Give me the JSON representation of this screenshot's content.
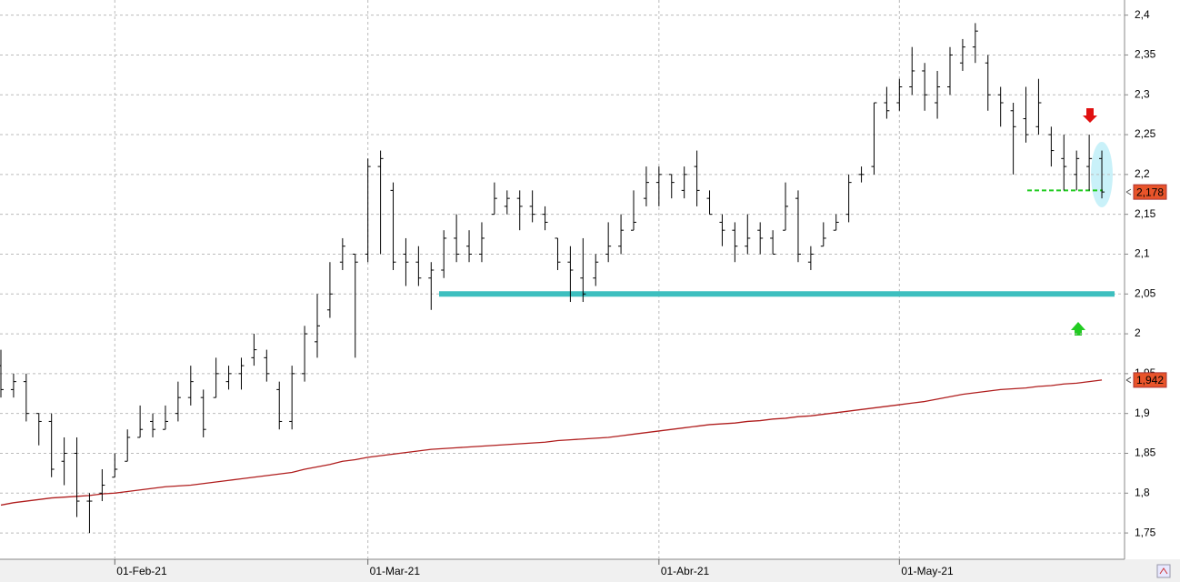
{
  "chart_data": {
    "type": "ohlc",
    "categories": [
      null,
      null,
      null,
      null,
      null,
      null,
      null,
      null,
      null,
      "01-Feb-21",
      null,
      null,
      null,
      null,
      null,
      null,
      null,
      null,
      null,
      null,
      null,
      null,
      null,
      null,
      null,
      null,
      null,
      null,
      null,
      "01-Mar-21",
      null,
      null,
      null,
      null,
      null,
      null,
      null,
      null,
      null,
      null,
      null,
      null,
      null,
      null,
      null,
      null,
      null,
      null,
      null,
      null,
      null,
      null,
      "01-Abr-21",
      null,
      null,
      null,
      null,
      null,
      null,
      null,
      null,
      null,
      null,
      null,
      null,
      null,
      null,
      null,
      null,
      null,
      null,
      "01-May-21",
      null,
      null,
      null,
      null,
      null,
      null,
      null,
      null,
      null,
      null,
      null,
      null,
      null,
      null,
      null,
      null
    ],
    "ohlc": {
      "color": "#000000",
      "open": [
        1.96,
        1.93,
        1.94,
        1.9,
        1.89,
        1.84,
        1.85,
        1.79,
        1.8,
        1.82,
        1.84,
        1.87,
        1.89,
        1.88,
        1.9,
        1.92,
        1.92,
        1.92,
        1.94,
        1.95,
        1.97,
        1.97,
        1.93,
        1.89,
        1.95,
        1.99,
        2.03,
        2.09,
        2.1,
        2.1,
        2.21,
        2.18,
        2.1,
        2.09,
        2.07,
        2.08,
        2.12,
        2.11,
        2.1,
        2.15,
        2.16,
        2.17,
        2.16,
        2.15,
        2.12,
        2.09,
        2.07,
        2.07,
        2.1,
        2.11,
        2.13,
        2.17,
        2.19,
        2.2,
        2.18,
        2.21,
        2.17,
        2.14,
        2.13,
        2.11,
        2.13,
        2.12,
        2.13,
        2.17,
        2.09,
        2.11,
        2.13,
        2.15,
        2.2,
        2.21,
        2.29,
        2.29,
        2.31,
        2.33,
        2.29,
        2.31,
        2.34,
        2.36,
        2.34,
        2.3,
        2.28,
        2.27,
        2.26,
        2.25,
        2.22,
        2.2,
        2.21,
        2.22
      ],
      "high": [
        1.98,
        1.95,
        1.95,
        1.9,
        1.9,
        1.87,
        1.87,
        1.8,
        1.83,
        1.85,
        1.88,
        1.91,
        1.9,
        1.91,
        1.94,
        1.96,
        1.93,
        1.97,
        1.96,
        1.97,
        2.0,
        1.98,
        1.94,
        1.96,
        2.01,
        2.05,
        2.09,
        2.12,
        2.1,
        2.22,
        2.23,
        2.19,
        2.12,
        2.11,
        2.09,
        2.13,
        2.15,
        2.13,
        2.14,
        2.19,
        2.18,
        2.18,
        2.18,
        2.16,
        2.12,
        2.11,
        2.12,
        2.1,
        2.14,
        2.15,
        2.18,
        2.21,
        2.21,
        2.2,
        2.21,
        2.23,
        2.18,
        2.15,
        2.14,
        2.15,
        2.14,
        2.13,
        2.19,
        2.18,
        2.11,
        2.14,
        2.15,
        2.2,
        2.21,
        2.29,
        2.31,
        2.32,
        2.36,
        2.34,
        2.33,
        2.36,
        2.37,
        2.39,
        2.35,
        2.31,
        2.29,
        2.31,
        2.32,
        2.26,
        2.25,
        2.23,
        2.25,
        2.23
      ],
      "low": [
        1.92,
        1.92,
        1.89,
        1.86,
        1.82,
        1.81,
        1.77,
        1.75,
        1.79,
        1.82,
        1.84,
        1.87,
        1.87,
        1.88,
        1.89,
        1.91,
        1.87,
        1.92,
        1.93,
        1.93,
        1.96,
        1.94,
        1.88,
        1.88,
        1.94,
        1.97,
        2.02,
        2.08,
        1.97,
        2.09,
        2.1,
        2.08,
        2.06,
        2.06,
        2.03,
        2.07,
        2.09,
        2.09,
        2.09,
        2.15,
        2.15,
        2.13,
        2.14,
        2.13,
        2.08,
        2.04,
        2.04,
        2.06,
        2.09,
        2.1,
        2.13,
        2.16,
        2.16,
        2.17,
        2.17,
        2.16,
        2.15,
        2.11,
        2.09,
        2.1,
        2.1,
        2.1,
        2.13,
        2.09,
        2.08,
        2.11,
        2.13,
        2.14,
        2.19,
        2.2,
        2.27,
        2.28,
        2.3,
        2.28,
        2.27,
        2.3,
        2.33,
        2.34,
        2.28,
        2.26,
        2.2,
        2.24,
        2.25,
        2.21,
        2.18,
        2.18,
        2.18,
        2.17
      ],
      "close": [
        1.93,
        1.94,
        1.9,
        1.89,
        1.83,
        1.85,
        1.79,
        1.79,
        1.81,
        1.83,
        1.87,
        1.88,
        1.88,
        1.89,
        1.92,
        1.94,
        1.88,
        1.95,
        1.95,
        1.96,
        1.98,
        1.95,
        1.89,
        1.95,
        2.0,
        2.01,
        2.05,
        2.11,
        2.09,
        2.21,
        2.22,
        2.09,
        2.09,
        2.07,
        2.08,
        2.12,
        2.1,
        2.1,
        2.12,
        2.17,
        2.17,
        2.16,
        2.15,
        2.14,
        2.09,
        2.08,
        2.05,
        2.09,
        2.11,
        2.13,
        2.14,
        2.19,
        2.2,
        2.19,
        2.2,
        2.18,
        2.15,
        2.13,
        2.11,
        2.12,
        2.12,
        2.1,
        2.16,
        2.1,
        2.1,
        2.12,
        2.14,
        2.19,
        2.2,
        2.29,
        2.28,
        2.31,
        2.33,
        2.3,
        2.31,
        2.35,
        2.36,
        2.38,
        2.3,
        2.29,
        2.26,
        2.25,
        2.29,
        2.23,
        2.21,
        2.22,
        2.22,
        2.178
      ]
    },
    "moving_average": {
      "color": "#b01e1e",
      "values": [
        1.785,
        1.788,
        1.79,
        1.792,
        1.794,
        1.795,
        1.796,
        1.797,
        1.799,
        1.8,
        1.802,
        1.804,
        1.806,
        1.808,
        1.809,
        1.81,
        1.812,
        1.814,
        1.816,
        1.818,
        1.82,
        1.822,
        1.824,
        1.826,
        1.83,
        1.833,
        1.836,
        1.84,
        1.842,
        1.845,
        1.847,
        1.849,
        1.851,
        1.853,
        1.855,
        1.856,
        1.857,
        1.858,
        1.859,
        1.86,
        1.861,
        1.862,
        1.863,
        1.864,
        1.866,
        1.867,
        1.868,
        1.869,
        1.87,
        1.872,
        1.874,
        1.876,
        1.878,
        1.88,
        1.882,
        1.884,
        1.886,
        1.887,
        1.888,
        1.89,
        1.891,
        1.893,
        1.894,
        1.896,
        1.897,
        1.899,
        1.901,
        1.903,
        1.905,
        1.907,
        1.909,
        1.911,
        1.913,
        1.915,
        1.918,
        1.921,
        1.924,
        1.926,
        1.928,
        1.93,
        1.931,
        1.932,
        1.934,
        1.935,
        1.937,
        1.938,
        1.94,
        1.942
      ]
    },
    "price_markers": [
      {
        "value": 2.178,
        "label": "2,178",
        "color": "#e8542a"
      },
      {
        "value": 1.942,
        "label": "1,942",
        "color": "#e8542a"
      }
    ],
    "hlines": [
      {
        "value": 2.05,
        "color": "#3dbfbf",
        "dashed": false
      },
      {
        "value": 2.18,
        "color": "#22cc22",
        "dashed": true
      }
    ],
    "ylim": [
      1.717,
      2.419
    ],
    "yticks": [
      {
        "value": 1.75,
        "label": "1,75"
      },
      {
        "value": 1.8,
        "label": "1,8"
      },
      {
        "value": 1.85,
        "label": "1,85"
      },
      {
        "value": 1.9,
        "label": "1,9"
      },
      {
        "value": 1.95,
        "label": "1,95"
      },
      2,
      {
        "value": 2.05,
        "label": "2,05"
      },
      {
        "value": 2.1,
        "label": "2,1"
      },
      {
        "value": 2.15,
        "label": "2,15"
      },
      {
        "value": 2.2,
        "label": "2,2"
      },
      {
        "value": 2.25,
        "label": "2,25"
      },
      {
        "value": 2.3,
        "label": "2,3"
      },
      {
        "value": 2.35,
        "label": "2,35"
      },
      {
        "value": 2.4,
        "label": "2,4"
      }
    ],
    "grid": true
  }
}
